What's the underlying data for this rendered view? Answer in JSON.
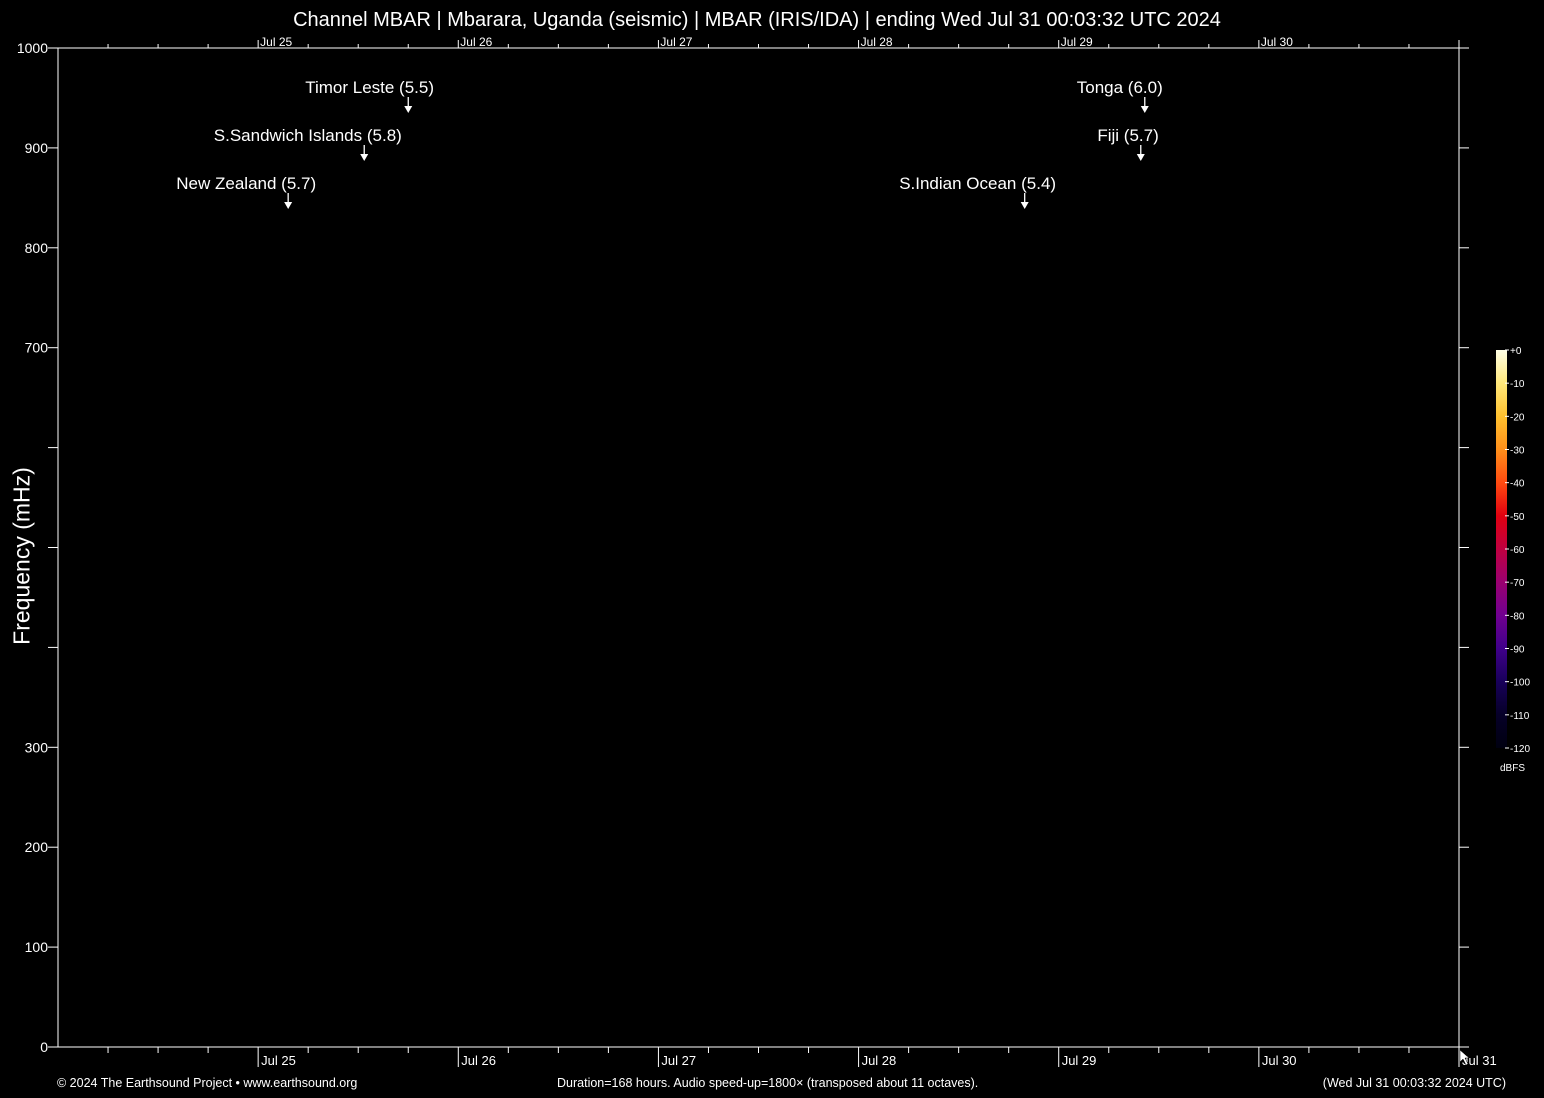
{
  "chart_data": {
    "type": "heatmap",
    "title": "Channel MBAR | Mbarara, Uganda (seismic) | MBAR (IRIS/IDA) | ending Wed Jul 31 00:03:32 UTC 2024",
    "ylabel": "Frequency (mHz)",
    "xlabel": "",
    "ylim": [
      0,
      1000
    ],
    "y_ticks": [
      0,
      100,
      200,
      300,
      700,
      800,
      900,
      1000
    ],
    "y_ticks_unlabeled": [
      400,
      500,
      600
    ],
    "x_range_days": [
      "Jul 24",
      "Jul 31"
    ],
    "x_date_labels": [
      "Jul 25",
      "Jul 26",
      "Jul 27",
      "Jul 28",
      "Jul 29",
      "Jul 30",
      "Jul 31"
    ],
    "events": [
      {
        "label": "Timor Leste (5.5)",
        "day": 25.75,
        "row": 1
      },
      {
        "label": "S.Sandwich Islands (5.8)",
        "day": 25.53,
        "row": 2
      },
      {
        "label": "New Zealand (5.7)",
        "day": 25.15,
        "row": 3
      },
      {
        "label": "Tonga (6.0)",
        "day": 29.43,
        "row": 1
      },
      {
        "label": "Fiji (5.7)",
        "day": 29.41,
        "row": 2
      },
      {
        "label": "S.Indian Ocean (5.4)",
        "day": 28.83,
        "row": 3
      }
    ],
    "colorbar": {
      "ticks": [
        "+0",
        "-10",
        "-20",
        "-30",
        "-40",
        "-50",
        "-60",
        "-70",
        "-80",
        "-90",
        "-100",
        "-110",
        "-120"
      ],
      "unit": "dBFS",
      "colors": [
        "#ffffe6",
        "#ffe87a",
        "#ffc12e",
        "#ff8f1a",
        "#ff4a10",
        "#e00010",
        "#c00040",
        "#9a0070",
        "#700090",
        "#40008a",
        "#18005a",
        "#060028",
        "#000010"
      ]
    },
    "spectrogram_data": "empty (all black)"
  },
  "footer": {
    "left": "© 2024 The Earthsound Project • www.earthsound.org",
    "center": "Duration=168 hours. Audio speed-up=1800× (transposed about 11 octaves).",
    "right": "(Wed Jul 31 00:03:32 2024 UTC)"
  }
}
